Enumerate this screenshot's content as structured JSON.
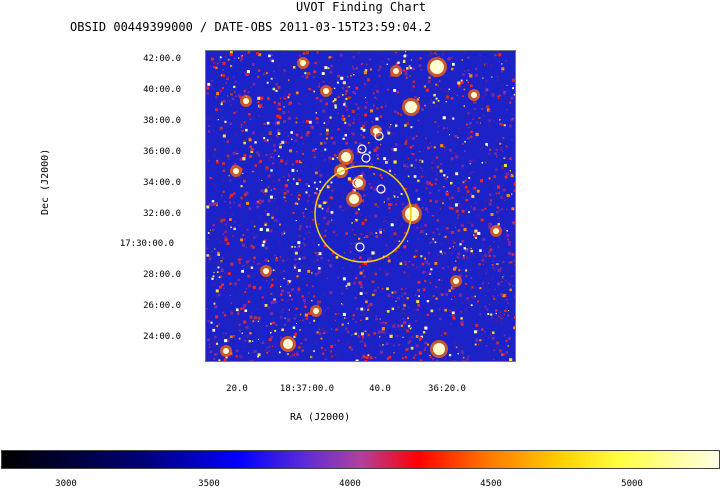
{
  "title": "UVOT Finding Chart",
  "subtitle": "OBSID 00449399000 / DATE-OBS 2011-03-15T23:59:04.2",
  "chart_data": {
    "type": "heatmap",
    "title": "UVOT Finding Chart",
    "subtitle": "OBSID 00449399000 / DATE-OBS 2011-03-15T23:59:04.2",
    "xlabel": "RA (J2000)",
    "ylabel": "Dec (J2000)",
    "xticks": [
      "20.0",
      "18:37:00.0",
      "40.0",
      "36:20.0"
    ],
    "yticks": [
      "42:00.0",
      "40:00.0",
      "38:00.0",
      "36:00.0",
      "34:00.0",
      "32:00.0",
      "17:30:00.0",
      "28:00.0",
      "26:00.0",
      "24:00.0"
    ],
    "colorbar": {
      "ticks": [
        3000,
        3500,
        4000,
        4500,
        5000
      ],
      "colors": [
        "#000000",
        "#0000ff",
        "#ff0000",
        "#ffd000",
        "#ffffe8"
      ]
    },
    "overlay_colors": {
      "error_circle": "#ffcc00",
      "source_circle": "#ffffff"
    }
  }
}
